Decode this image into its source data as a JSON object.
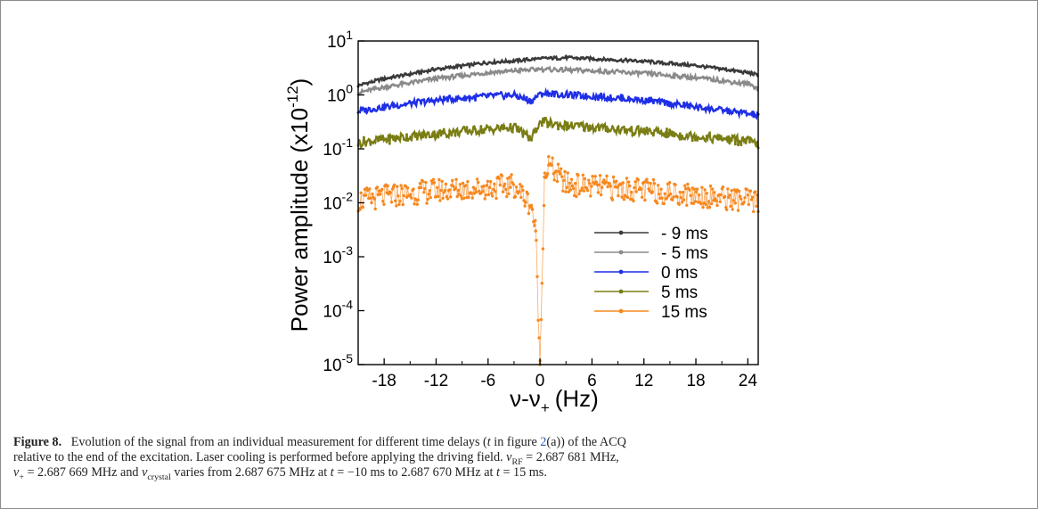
{
  "chart_data": {
    "type": "line",
    "xlabel": "ν-ν",
    "xlabel_sub": "+",
    "xlabel_unit": "(Hz)",
    "ylabel": "Power amplitude (x10",
    "ylabel_sup": "-12",
    "ylabel_tail": ")",
    "y_scale": "log",
    "xlim": [
      -21,
      25.2
    ],
    "ylim": [
      1e-05,
      10
    ],
    "x_ticks": [
      -18,
      -12,
      -6,
      0,
      6,
      12,
      18,
      24
    ],
    "y_ticks": [
      {
        "value": 10,
        "base": "10",
        "exp": "1"
      },
      {
        "value": 1,
        "base": "10",
        "exp": "0"
      },
      {
        "value": 0.1,
        "base": "10",
        "exp": "-1"
      },
      {
        "value": 0.01,
        "base": "10",
        "exp": "-2"
      },
      {
        "value": 0.001,
        "base": "10",
        "exp": "-3"
      },
      {
        "value": 0.0001,
        "base": "10",
        "exp": "-4"
      },
      {
        "value": 1e-05,
        "base": "10",
        "exp": "-5"
      }
    ],
    "legend_position": "lower-right",
    "series": [
      {
        "name": "- 9 ms",
        "color": "#3a3a3a",
        "x": [
          -21,
          -18,
          -12,
          -6,
          -3,
          0,
          3,
          6,
          12,
          18,
          24,
          25.2
        ],
        "values": [
          1.5,
          2.0,
          3.0,
          4.0,
          4.3,
          4.7,
          4.9,
          4.7,
          4.2,
          3.5,
          2.6,
          2.3
        ]
      },
      {
        "name": "- 5 ms",
        "color": "#8a8a8a",
        "x": [
          -21,
          -18,
          -12,
          -6,
          -3,
          0,
          3,
          6,
          12,
          18,
          24,
          25.2
        ],
        "values": [
          1.1,
          1.4,
          2.0,
          2.6,
          2.8,
          3.0,
          2.9,
          2.8,
          2.5,
          2.1,
          1.6,
          1.35
        ]
      },
      {
        "name": "0 ms",
        "color": "#1f2fe6",
        "x": [
          -21,
          -18,
          -12,
          -6,
          -3,
          -1,
          0,
          1,
          3,
          6,
          12,
          18,
          24,
          25.2
        ],
        "values": [
          0.5,
          0.6,
          0.8,
          0.95,
          1.0,
          0.75,
          1.1,
          1.05,
          1.0,
          0.95,
          0.8,
          0.6,
          0.45,
          0.4
        ]
      },
      {
        "name": "5 ms",
        "color": "#7a7d14",
        "x": [
          -21,
          -18,
          -12,
          -6,
          -3,
          -1,
          0,
          1,
          3,
          6,
          12,
          18,
          24,
          25.2
        ],
        "values": [
          0.13,
          0.15,
          0.19,
          0.23,
          0.25,
          0.15,
          0.32,
          0.3,
          0.27,
          0.25,
          0.21,
          0.17,
          0.14,
          0.12
        ]
      },
      {
        "name": "15 ms",
        "color": "#f7881f",
        "x": [
          -21,
          -18,
          -12,
          -6,
          -3,
          -1,
          -0.5,
          0,
          0.5,
          1,
          3,
          6,
          12,
          18,
          24,
          25.2
        ],
        "values": [
          0.011,
          0.013,
          0.017,
          0.019,
          0.021,
          0.009,
          0.003,
          1e-05,
          0.03,
          0.05,
          0.022,
          0.02,
          0.017,
          0.014,
          0.011,
          0.01
        ]
      }
    ]
  },
  "caption": {
    "label": "Figure 8.",
    "line1_a": "Evolution of the signal from an individual measurement for different time delays (",
    "line1_t": "t",
    "line1_b": " in figure ",
    "line1_ref": "2",
    "line1_c": "(a)) of the ACQ",
    "line2_a": "relative to the end of the excitation. Laser cooling is performed before applying the driving field. ",
    "line2_nu": "ν",
    "line2_sub": "RF",
    "line2_b": " = 2.687 681 MHz,",
    "line3_nu": "ν",
    "line3_sub": "+",
    "line3_a": " = 2.687 669 MHz and ",
    "line3_nu2": "ν",
    "line3_sub2": "crystal",
    "line3_b": " varies from 2.687 675 MHz at ",
    "line3_t1": "t",
    "line3_c": " = −10 ms to 2.687 670 MHz at ",
    "line3_t2": "t",
    "line3_d": " = 15 ms."
  }
}
